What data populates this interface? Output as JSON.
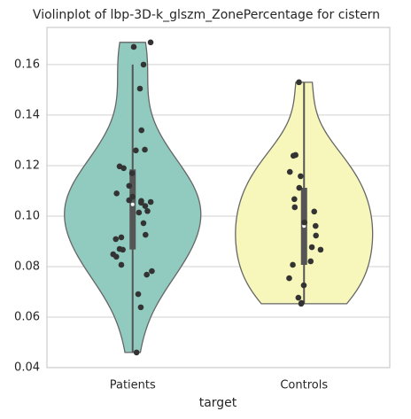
{
  "chart_data": {
    "type": "violin",
    "title": "Violinplot of lbp-3D-k_glszm_ZonePercentage for cistern",
    "xlabel": "target",
    "categories": [
      "Patients",
      "Controls"
    ],
    "series": [
      {
        "name": "Patients",
        "color": "#91cbbf",
        "values": [
          0.1688,
          0.167,
          0.16,
          0.1505,
          0.134,
          0.1263,
          0.126,
          0.1197,
          0.119,
          0.117,
          0.112,
          0.109,
          0.1077,
          0.1063,
          0.106,
          0.1056,
          0.1053,
          0.104,
          0.1014,
          0.102,
          0.0972,
          0.0926,
          0.0916,
          0.0909,
          0.087,
          0.0867,
          0.0849,
          0.0839,
          0.0807,
          0.0782,
          0.0768,
          0.0691,
          0.0639,
          0.046
        ]
      },
      {
        "name": "Controls",
        "color": "#f7f7bb",
        "values": [
          0.153,
          0.1242,
          0.1239,
          0.1175,
          0.1158,
          0.1112,
          0.1067,
          0.1035,
          0.1018,
          0.0975,
          0.0961,
          0.0923,
          0.0877,
          0.0867,
          0.0821,
          0.0807,
          0.0754,
          0.0726,
          0.0677,
          0.0656,
          0.0653
        ]
      }
    ],
    "ylim": [
      0.04,
      0.1747
    ],
    "yticks": [
      0.04,
      0.06,
      0.08,
      {
        "value": 0.1,
        "label": "0.10"
      },
      0.12,
      0.14,
      0.16
    ],
    "grid": true,
    "edge_color": "#666666",
    "point_color": "#333333"
  }
}
